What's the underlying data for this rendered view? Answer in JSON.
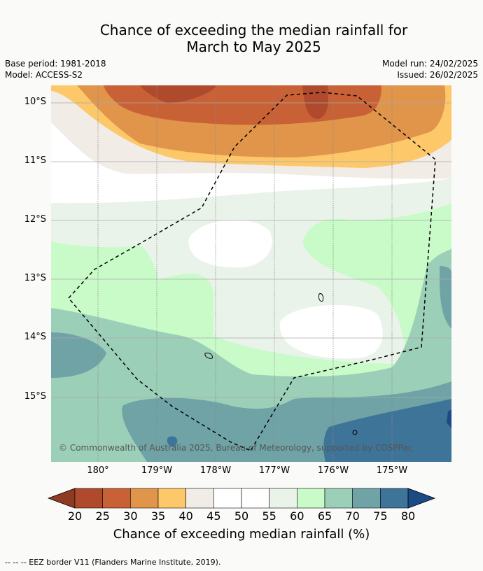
{
  "title_line1": "Chance of exceeding the median rainfall for",
  "title_line2": "March to May 2025",
  "base_period": "Base period: 1981-2018",
  "model": "Model: ACCESS-S2",
  "model_run": "Model run: 24/02/2025",
  "issued": "Issued: 26/02/2025",
  "lat_labels": [
    "10°S",
    "11°S",
    "12°S",
    "13°S",
    "14°S",
    "15°S"
  ],
  "lon_labels": [
    "180°",
    "179°W",
    "178°W",
    "177°W",
    "176°W",
    "175°W"
  ],
  "copyright": "© Commonwealth of Australia 2025, Bureau of Meteorology, supported by COSPPac",
  "colorbar": {
    "ticks": [
      "20",
      "25",
      "30",
      "35",
      "40",
      "45",
      "50",
      "55",
      "60",
      "65",
      "70",
      "75",
      "80"
    ],
    "colors": [
      "#8f3b24",
      "#b04a2c",
      "#c96136",
      "#e0954b",
      "#fdc86a",
      "#f1ece6",
      "#ffffff",
      "#ffffff",
      "#eaf3e9",
      "#c9fbc9",
      "#9ccfb8",
      "#6fa3a6",
      "#3f7499",
      "#1a4b85"
    ],
    "label": "Chance of exceeding median rainfall (%)"
  },
  "footnote": "--  --  -- EEZ border V11 (Flanders Marine Institute, 2019)."
}
